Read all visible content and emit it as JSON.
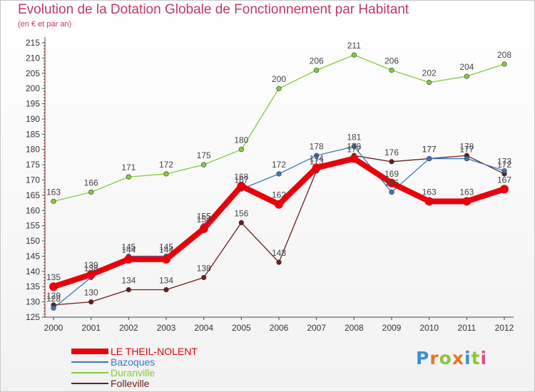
{
  "title": "Evolution de la Dotation Globale de Fonctionnement par Habitant",
  "subtitle": "(en € et par an)",
  "logo": "Proxiti",
  "chart_data": {
    "type": "line",
    "title": "Evolution de la Dotation Globale de Fonctionnement par Habitant",
    "ylabel": "(en € et par an)",
    "xlabel": "",
    "x": [
      2000,
      2001,
      2002,
      2003,
      2004,
      2005,
      2006,
      2007,
      2008,
      2009,
      2010,
      2011,
      2012
    ],
    "ylim": [
      125,
      215
    ],
    "ytick_step": 5,
    "grid": false,
    "legend_position": "bottom-left",
    "series": [
      {
        "name": "LE THEIL-NOLENT",
        "color": "#e8000b",
        "values": [
          135,
          139,
          144,
          144,
          154,
          168,
          162,
          174,
          177,
          169,
          163,
          163,
          167
        ]
      },
      {
        "name": "Bazoques",
        "color": "#3a76c4",
        "values": [
          128,
          138,
          145,
          145,
          155,
          167,
          172,
          178,
          181,
          166,
          177,
          177,
          173
        ]
      },
      {
        "name": "Duranville",
        "color": "#84cc3c",
        "values": [
          163,
          166,
          171,
          172,
          175,
          180,
          200,
          206,
          211,
          206,
          202,
          204,
          208
        ]
      },
      {
        "name": "Folleville",
        "color": "#6b1e1e",
        "values": [
          129,
          130,
          134,
          134,
          138,
          156,
          143,
          173,
          178,
          176,
          177,
          178,
          172
        ]
      }
    ]
  }
}
